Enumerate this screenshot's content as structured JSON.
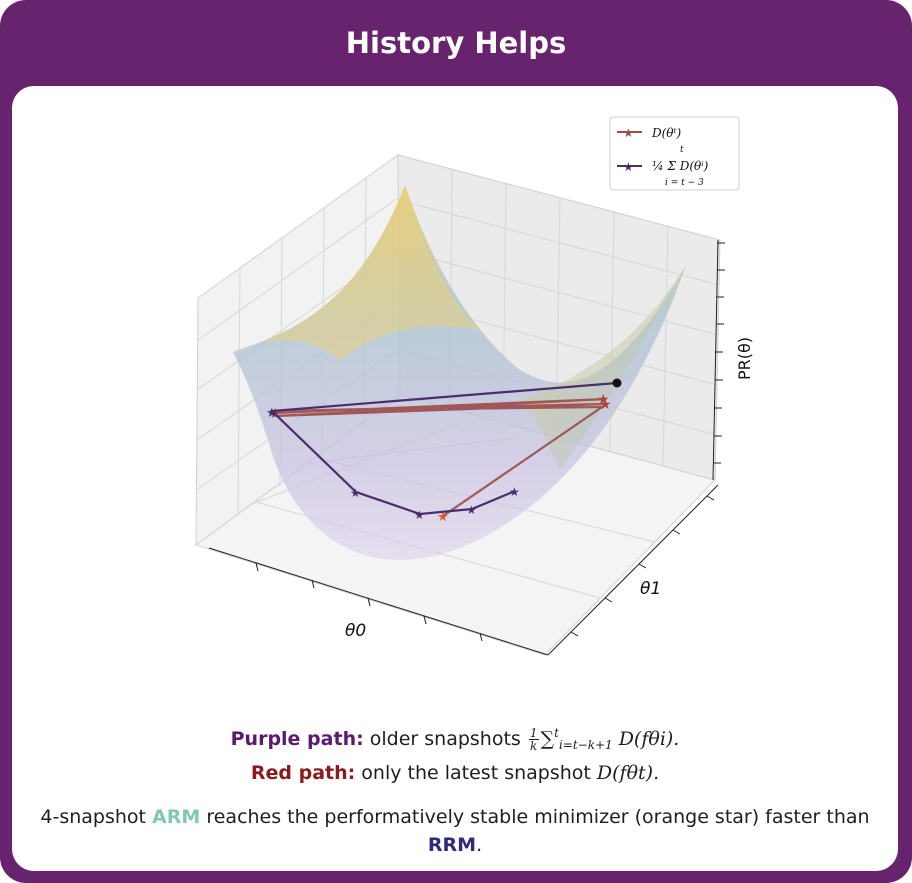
{
  "title": "History Helps",
  "legend": {
    "red_label": "D(θᵗ)",
    "purple_label": "¼ Σ D(θⁱ)",
    "purple_sum_top": "t",
    "purple_sum_bottom": "i = t − 3"
  },
  "axes": {
    "x_label": "θ0",
    "y_label": "θ1",
    "z_label": "PR(θ)"
  },
  "colors": {
    "frame": "#68236f",
    "purple_path": "#4b2d6e",
    "red_path": "#9c4a4a",
    "optimum_star": "#e05a2b",
    "arm": "#7fc8b6",
    "rrm": "#2f2a7a"
  },
  "captions": {
    "purple_bold": "Purple path:",
    "purple_text": "older snapshots",
    "purple_formula_num": "1",
    "purple_formula_den": "k",
    "purple_formula_sum": "∑",
    "purple_formula_sub": "i=t−k+1",
    "purple_formula_sup": "t",
    "purple_formula_tail": "D(fθi).",
    "red_bold": "Red path:",
    "red_text": "only the latest snapshot",
    "red_formula": "D(fθt).",
    "summary_a": "4-snapshot",
    "summary_arm": "ARM",
    "summary_b": "reaches the performatively stable minimizer (orange star) faster than",
    "summary_rrm": "RRM",
    "summary_end": "."
  }
}
